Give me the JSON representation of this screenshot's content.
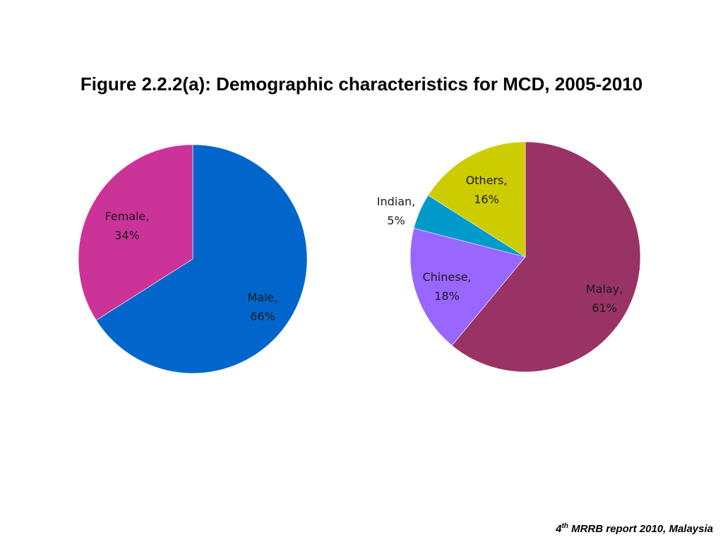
{
  "title": "Figure 2.2.2(a): Demographic characteristics for MCD, 2005-2010",
  "footer": {
    "ordinal_number": "4",
    "ordinal_suffix": "th",
    "text": " MRRB report 2010, Malaysia"
  },
  "chart_data": [
    {
      "type": "pie",
      "title": "",
      "slices": [
        {
          "label": "Male",
          "value": 66,
          "value_text": "66%",
          "color": "#0066cc"
        },
        {
          "label": "Female",
          "value": 34,
          "value_text": "34%",
          "color": "#cc3399"
        }
      ]
    },
    {
      "type": "pie",
      "title": "",
      "slices": [
        {
          "label": "Malay",
          "value": 61,
          "value_text": "61%",
          "color": "#993366"
        },
        {
          "label": "Chinese",
          "value": 18,
          "value_text": "18%",
          "color": "#9966ff"
        },
        {
          "label": "Indian",
          "value": 5,
          "value_text": "5%",
          "color": "#0099cc"
        },
        {
          "label": "Others",
          "value": 16,
          "value_text": "16%",
          "color": "#cccc00"
        }
      ]
    }
  ]
}
